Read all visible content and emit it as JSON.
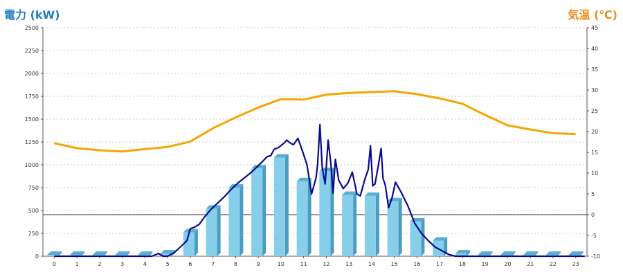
{
  "chart_data": {
    "type": "bar",
    "title_left": "電力 (kW)",
    "title_right": "気温 (℃)",
    "categories": [
      "0",
      "1",
      "2",
      "3",
      "4",
      "5",
      "6",
      "7",
      "8",
      "9",
      "10",
      "11",
      "12",
      "13",
      "14",
      "15",
      "16",
      "17",
      "18",
      "19",
      "20",
      "21",
      "22",
      "23"
    ],
    "y_left": {
      "min": 0,
      "max": 2500,
      "step": 250,
      "ticks": [
        "0",
        "250",
        "500",
        "750",
        "1000",
        "1250",
        "1500",
        "1750",
        "2000",
        "2250",
        "2500"
      ]
    },
    "y_right": {
      "min": -10,
      "max": 45,
      "step": 5,
      "ticks": [
        "-10",
        "-5",
        "0",
        "5",
        "10",
        "15",
        "20",
        "25",
        "30",
        "35",
        "40",
        "45"
      ]
    },
    "grid": true,
    "zero_line_right": 0,
    "series": [
      {
        "type": "bar",
        "axis": "left",
        "color": "#87ceeb",
        "values": [
          10,
          10,
          10,
          10,
          10,
          30,
          260,
          520,
          750,
          960,
          1080,
          820,
          930,
          670,
          660,
          600,
          380,
          170,
          30,
          10,
          10,
          10,
          10,
          10
        ]
      },
      {
        "type": "line",
        "axis": "right",
        "color": "#f5a500",
        "values": [
          17.2,
          16,
          15.5,
          15.2,
          15.8,
          16.3,
          17.6,
          20.8,
          23.4,
          25.8,
          27.8,
          27.7,
          28.9,
          29.3,
          29.5,
          29.7,
          29,
          28,
          26.7,
          24,
          21.5,
          20.5,
          19.6,
          19.4
        ]
      },
      {
        "type": "line",
        "axis": "left",
        "color": "#0a0a8c",
        "x": [
          0,
          4.3,
          4.6,
          4.8,
          5,
          5.3,
          5.6,
          5.85,
          6,
          6.2,
          6.4,
          6.6,
          6.9,
          7.2,
          7.5,
          7.8,
          8.1,
          8.4,
          8.7,
          9,
          9.2,
          9.4,
          9.55,
          9.7,
          9.9,
          10.05,
          10.15,
          10.25,
          10.4,
          10.55,
          10.75,
          10.95,
          11.15,
          11.35,
          11.55,
          11.62,
          11.72,
          11.82,
          11.95,
          12.08,
          12.2,
          12.3,
          12.4,
          12.55,
          12.75,
          12.95,
          13.15,
          13.35,
          13.5,
          13.7,
          13.85,
          13.95,
          14.05,
          14.15,
          14.3,
          14.42,
          14.5,
          14.6,
          14.75,
          14.9,
          15.05,
          15.3,
          15.6,
          15.9,
          16.2,
          16.5,
          16.8,
          17.1,
          17.4,
          17.7,
          17.9,
          23.4
        ],
        "values": [
          0,
          0,
          30,
          0,
          -10,
          40,
          110,
          170,
          300,
          320,
          350,
          420,
          510,
          580,
          650,
          730,
          800,
          860,
          920,
          990,
          1040,
          1090,
          1100,
          1170,
          1190,
          1220,
          1240,
          1270,
          1240,
          1220,
          1290,
          1150,
          1000,
          680,
          860,
          1010,
          1440,
          970,
          790,
          1270,
          1020,
          690,
          1060,
          830,
          740,
          800,
          920,
          680,
          660,
          840,
          950,
          1210,
          770,
          790,
          1000,
          1180,
          850,
          780,
          530,
          640,
          810,
          700,
          550,
          360,
          250,
          170,
          100,
          60,
          20,
          0,
          0,
          0
        ]
      }
    ]
  }
}
